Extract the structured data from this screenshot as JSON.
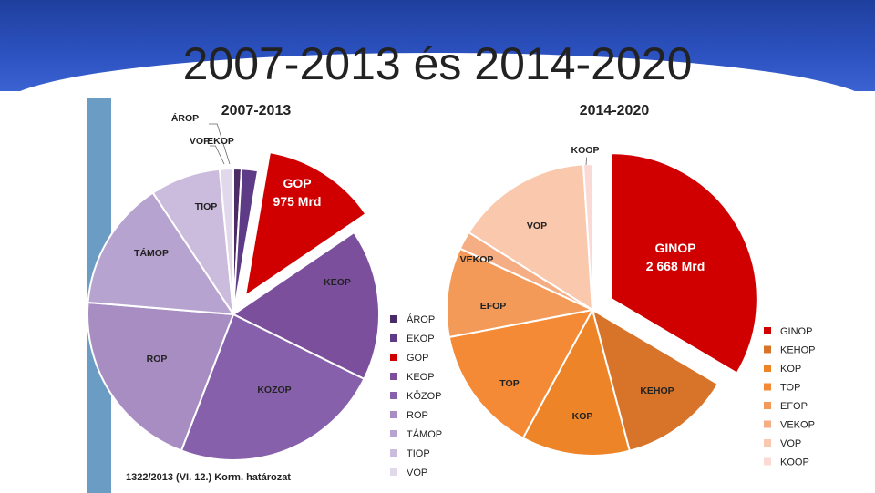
{
  "page": {
    "title": "2007-2013 és 2014-2020"
  },
  "chart_data": [
    {
      "type": "pie",
      "title": "2007-2013",
      "exploded": "GOP",
      "callout": {
        "name": "GOP",
        "value": "975 Mrd"
      },
      "footnote": "1322/2013 (VI. 12.) Korm. határozat",
      "legend_position": "right",
      "slices": [
        {
          "name": "ÁROP",
          "share": 0.009,
          "color": "#4b2a66"
        },
        {
          "name": "EKOP",
          "share": 0.018,
          "color": "#5d3b86"
        },
        {
          "name": "GOP",
          "share": 0.128,
          "color": "#d00000"
        },
        {
          "name": "KEOP",
          "share": 0.168,
          "color": "#7b4f9c"
        },
        {
          "name": "KÖZOP",
          "share": 0.235,
          "color": "#8660aa"
        },
        {
          "name": "ROP",
          "share": 0.205,
          "color": "#a88dc3"
        },
        {
          "name": "TÁMOP",
          "share": 0.144,
          "color": "#b7a3cf"
        },
        {
          "name": "TIOP",
          "share": 0.078,
          "color": "#cbbbdc"
        },
        {
          "name": "VOP",
          "share": 0.015,
          "color": "#e2d8ec"
        }
      ]
    },
    {
      "type": "pie",
      "title": "2014-2020",
      "exploded": "GINOP",
      "callout": {
        "name": "GINOP",
        "value": "2 668 Mrd"
      },
      "legend_position": "right",
      "slices": [
        {
          "name": "GINOP",
          "share": 0.335,
          "color": "#d00000"
        },
        {
          "name": "KEHOP",
          "share": 0.124,
          "color": "#d8742a"
        },
        {
          "name": "KOP",
          "share": 0.12,
          "color": "#ee8428"
        },
        {
          "name": "TOP",
          "share": 0.141,
          "color": "#f48a35"
        },
        {
          "name": "EFOP",
          "share": 0.099,
          "color": "#f39a58"
        },
        {
          "name": "VEKOP",
          "share": 0.02,
          "color": "#f5ad84"
        },
        {
          "name": "VOP",
          "share": 0.151,
          "color": "#f9c8ad"
        },
        {
          "name": "KOOP",
          "share": 0.01,
          "color": "#fbd9d5"
        }
      ]
    }
  ]
}
